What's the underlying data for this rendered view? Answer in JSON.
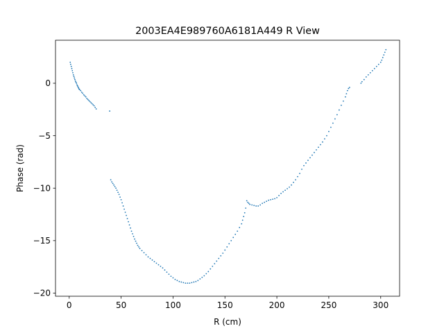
{
  "chart_data": {
    "type": "scatter",
    "title": "2003EA4E989760A6181A449 R View",
    "xlabel": "R (cm)",
    "ylabel": "Phase (rad)",
    "xlim": [
      -13.2,
      318.2
    ],
    "ylim": [
      -20.3,
      4.1
    ],
    "xticks": [
      0,
      50,
      100,
      150,
      200,
      250,
      300
    ],
    "yticks": [
      -20,
      -15,
      -10,
      -5,
      0
    ],
    "xtick_labels": [
      "0",
      "50",
      "100",
      "150",
      "200",
      "250",
      "300"
    ],
    "ytick_labels": [
      "−20",
      "−15",
      "−10",
      "−5",
      "0"
    ],
    "grid": false,
    "marker_color": "#1f77b4",
    "series": [
      {
        "points": [
          [
            1.0,
            2.0
          ],
          [
            1.4,
            1.8
          ],
          [
            2.0,
            1.6
          ],
          [
            2.5,
            1.4
          ],
          [
            3.0,
            1.2
          ],
          [
            3.5,
            1.0
          ],
          [
            4.0,
            0.8
          ],
          [
            4.5,
            0.65
          ],
          [
            5.0,
            0.5
          ],
          [
            5.5,
            0.35
          ],
          [
            6.0,
            0.2
          ],
          [
            6.5,
            0.1
          ],
          [
            7.0,
            0.0
          ],
          [
            7.5,
            -0.15
          ],
          [
            8.0,
            -0.25
          ],
          [
            8.5,
            -0.35
          ],
          [
            9.0,
            -0.45
          ],
          [
            9.5,
            -0.55
          ],
          [
            10.0,
            -0.6
          ],
          [
            11.0,
            -0.7
          ],
          [
            12.0,
            -0.85
          ],
          [
            13.0,
            -0.95
          ],
          [
            14.0,
            -1.1
          ],
          [
            15.0,
            -1.2
          ],
          [
            16.0,
            -1.3
          ],
          [
            17.0,
            -1.45
          ],
          [
            18.0,
            -1.55
          ],
          [
            19.0,
            -1.65
          ],
          [
            20.0,
            -1.75
          ],
          [
            21.0,
            -1.85
          ],
          [
            22.0,
            -1.95
          ],
          [
            23.0,
            -2.05
          ],
          [
            24.0,
            -2.15
          ],
          [
            25.0,
            -2.3
          ],
          [
            26.0,
            -2.45
          ],
          [
            39.0,
            -2.65
          ],
          [
            40.0,
            -9.2
          ],
          [
            41.0,
            -9.4
          ],
          [
            42.0,
            -9.55
          ],
          [
            43.0,
            -9.7
          ],
          [
            44.0,
            -9.85
          ],
          [
            45.0,
            -10.0
          ],
          [
            46.0,
            -10.2
          ],
          [
            47.0,
            -10.4
          ],
          [
            48.0,
            -10.6
          ],
          [
            49.0,
            -10.85
          ],
          [
            50.0,
            -11.1
          ],
          [
            51.0,
            -11.4
          ],
          [
            52.0,
            -11.7
          ],
          [
            53.0,
            -12.0
          ],
          [
            54.0,
            -12.3
          ],
          [
            55.0,
            -12.6
          ],
          [
            56.0,
            -12.9
          ],
          [
            57.0,
            -13.2
          ],
          [
            58.0,
            -13.5
          ],
          [
            59.0,
            -13.8
          ],
          [
            60.0,
            -14.1
          ],
          [
            61.0,
            -14.35
          ],
          [
            62.0,
            -14.6
          ],
          [
            63.0,
            -14.85
          ],
          [
            64.0,
            -15.05
          ],
          [
            65.0,
            -15.25
          ],
          [
            66.0,
            -15.45
          ],
          [
            67.0,
            -15.6
          ],
          [
            68.0,
            -15.75
          ],
          [
            70.0,
            -15.95
          ],
          [
            72.0,
            -16.15
          ],
          [
            74.0,
            -16.35
          ],
          [
            76.0,
            -16.55
          ],
          [
            78.0,
            -16.7
          ],
          [
            80.0,
            -16.85
          ],
          [
            82.0,
            -17.0
          ],
          [
            84.0,
            -17.15
          ],
          [
            86.0,
            -17.3
          ],
          [
            88.0,
            -17.45
          ],
          [
            90.0,
            -17.6
          ],
          [
            92.0,
            -17.8
          ],
          [
            94.0,
            -18.0
          ],
          [
            96.0,
            -18.2
          ],
          [
            98.0,
            -18.4
          ],
          [
            100.0,
            -18.55
          ],
          [
            102.0,
            -18.7
          ],
          [
            104.0,
            -18.8
          ],
          [
            106.0,
            -18.9
          ],
          [
            108.0,
            -18.95
          ],
          [
            110.0,
            -19.0
          ],
          [
            112.0,
            -19.05
          ],
          [
            114.0,
            -19.05
          ],
          [
            116.0,
            -19.05
          ],
          [
            118.0,
            -19.0
          ],
          [
            120.0,
            -18.95
          ],
          [
            122.0,
            -18.9
          ],
          [
            124.0,
            -18.8
          ],
          [
            126.0,
            -18.65
          ],
          [
            128.0,
            -18.5
          ],
          [
            130.0,
            -18.35
          ],
          [
            132.0,
            -18.15
          ],
          [
            134.0,
            -17.95
          ],
          [
            136.0,
            -17.7
          ],
          [
            138.0,
            -17.45
          ],
          [
            140.0,
            -17.2
          ],
          [
            142.0,
            -16.95
          ],
          [
            144.0,
            -16.7
          ],
          [
            146.0,
            -16.45
          ],
          [
            148.0,
            -16.2
          ],
          [
            150.0,
            -15.9
          ],
          [
            152.0,
            -15.6
          ],
          [
            154.0,
            -15.3
          ],
          [
            156.0,
            -15.0
          ],
          [
            158.0,
            -14.7
          ],
          [
            160.0,
            -14.4
          ],
          [
            162.0,
            -14.1
          ],
          [
            164.0,
            -13.75
          ],
          [
            166.0,
            -13.4
          ],
          [
            167.0,
            -13.05
          ],
          [
            168.0,
            -12.7
          ],
          [
            169.0,
            -12.35
          ],
          [
            170.0,
            -11.9
          ],
          [
            171.0,
            -11.2
          ],
          [
            172.0,
            -11.35
          ],
          [
            173.0,
            -11.45
          ],
          [
            174.0,
            -11.55
          ],
          [
            176.0,
            -11.6
          ],
          [
            178.0,
            -11.65
          ],
          [
            180.0,
            -11.7
          ],
          [
            182.0,
            -11.7
          ],
          [
            184.0,
            -11.6
          ],
          [
            186.0,
            -11.45
          ],
          [
            188.0,
            -11.35
          ],
          [
            190.0,
            -11.25
          ],
          [
            192.0,
            -11.15
          ],
          [
            194.0,
            -11.1
          ],
          [
            196.0,
            -11.05
          ],
          [
            198.0,
            -11.0
          ],
          [
            200.0,
            -10.9
          ],
          [
            202.0,
            -10.7
          ],
          [
            204.0,
            -10.5
          ],
          [
            206.0,
            -10.35
          ],
          [
            208.0,
            -10.2
          ],
          [
            210.0,
            -10.05
          ],
          [
            212.0,
            -9.9
          ],
          [
            214.0,
            -9.7
          ],
          [
            216.0,
            -9.45
          ],
          [
            218.0,
            -9.2
          ],
          [
            220.0,
            -8.9
          ],
          [
            222.0,
            -8.6
          ],
          [
            224.0,
            -8.2
          ],
          [
            226.0,
            -7.85
          ],
          [
            228.0,
            -7.6
          ],
          [
            230.0,
            -7.35
          ],
          [
            232.0,
            -7.1
          ],
          [
            234.0,
            -6.85
          ],
          [
            236.0,
            -6.6
          ],
          [
            238.0,
            -6.35
          ],
          [
            240.0,
            -6.1
          ],
          [
            242.0,
            -5.85
          ],
          [
            244.0,
            -5.6
          ],
          [
            246.0,
            -5.3
          ],
          [
            248.0,
            -5.0
          ],
          [
            250.0,
            -4.6
          ],
          [
            252.0,
            -4.2
          ],
          [
            254.0,
            -3.8
          ],
          [
            256.0,
            -3.4
          ],
          [
            258.0,
            -3.0
          ],
          [
            260.0,
            -2.55
          ],
          [
            262.0,
            -2.1
          ],
          [
            264.0,
            -1.7
          ],
          [
            266.0,
            -1.3
          ],
          [
            267.0,
            -1.0
          ],
          [
            268.0,
            -0.7
          ],
          [
            269.0,
            -0.5
          ],
          [
            270.0,
            -0.4
          ],
          [
            281.0,
            0.0
          ],
          [
            282.0,
            0.15
          ],
          [
            284.0,
            0.35
          ],
          [
            286.0,
            0.6
          ],
          [
            288.0,
            0.8
          ],
          [
            290.0,
            1.0
          ],
          [
            292.0,
            1.2
          ],
          [
            294.0,
            1.4
          ],
          [
            296.0,
            1.6
          ],
          [
            298.0,
            1.8
          ],
          [
            300.0,
            2.0
          ],
          [
            301.0,
            2.2
          ],
          [
            302.0,
            2.45
          ],
          [
            303.0,
            2.7
          ],
          [
            304.0,
            2.95
          ],
          [
            305.0,
            3.2
          ]
        ]
      }
    ]
  }
}
